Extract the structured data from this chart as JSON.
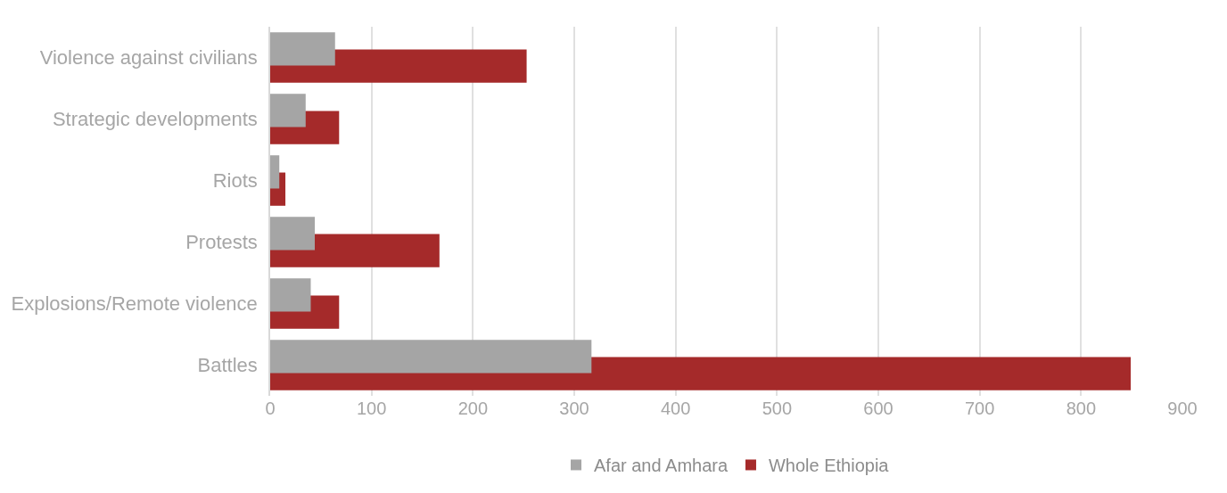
{
  "chart_data": {
    "type": "bar",
    "orientation": "horizontal",
    "categories": [
      "Violence against civilians",
      "Strategic developments",
      "Riots",
      "Protests",
      "Explosions/Remote violence",
      "Battles"
    ],
    "series": [
      {
        "name": "Afar and Amhara",
        "color": "#a5a5a5",
        "values": [
          64,
          35,
          9,
          44,
          40,
          317
        ]
      },
      {
        "name": "Whole Ethiopia",
        "color": "#a52a2a",
        "values": [
          253,
          68,
          15,
          167,
          68,
          849
        ]
      }
    ],
    "xlim": [
      0,
      900
    ],
    "xticks": [
      0,
      100,
      200,
      300,
      400,
      500,
      600,
      700,
      800,
      900
    ],
    "grid": "x",
    "legend": "bottom"
  }
}
